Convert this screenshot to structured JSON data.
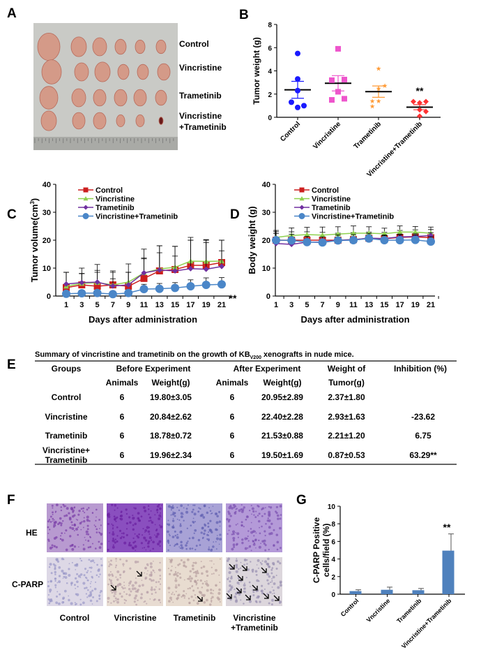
{
  "panels": {
    "a": "A",
    "b": "B",
    "c": "C",
    "d": "D",
    "e": "E",
    "f": "F",
    "g": "G"
  },
  "panel_a": {
    "row_labels": [
      "Control",
      "Vincristine",
      "Trametinib",
      "Vincristine",
      "+Trametinib"
    ]
  },
  "colors": {
    "control": "#cc1f1f",
    "vincristine": "#8fd14f",
    "trametinib": "#7030a0",
    "combo": "#4a86c8",
    "b_control": "#1a1aff",
    "b_vincristine": "#ee55cc",
    "b_trametinib": "#ff9933",
    "b_combo": "#ff3333",
    "bar": "#4f81bd"
  },
  "chart_data": [
    {
      "id": "B",
      "type": "scatter",
      "ylabel": "Tumor weight (g)",
      "ylim": [
        0,
        8
      ],
      "yticks": [
        "0",
        "2",
        "4",
        "6",
        "8"
      ],
      "categories": [
        "Control",
        "Vincristine",
        "Trametinib",
        "Vincristine+Trametinib"
      ],
      "points": [
        [
          5.5,
          3.3,
          2.3,
          1.3,
          0.85,
          1.0
        ],
        [
          5.9,
          3.2,
          3.25,
          2.2,
          1.5,
          1.6
        ],
        [
          4.2,
          2.75,
          2.5,
          1.4,
          1.4,
          0.95
        ],
        [
          1.35,
          1.25,
          1.35,
          0.65,
          0.5,
          0.1
        ]
      ],
      "mean": [
        2.37,
        2.93,
        2.21,
        0.87
      ],
      "sem": [
        0.73,
        0.66,
        0.49,
        0.22
      ],
      "annotation": "**"
    },
    {
      "id": "C",
      "type": "line",
      "ylabel": "Tumor volume(cm",
      "ylabel_sup": "3",
      "ylabel_end": ")",
      "xlabel": "Days after administration",
      "ylim": [
        0,
        40
      ],
      "yticks": [
        "0",
        "10",
        "20",
        "30",
        "40"
      ],
      "x": [
        1,
        3,
        5,
        7,
        9,
        11,
        13,
        15,
        17,
        19,
        21
      ],
      "series": [
        {
          "name": "Control",
          "values": [
            3,
            4,
            3.5,
            4,
            3.5,
            6.3,
            9,
            9.5,
            11,
            11,
            12
          ],
          "err": [
            5.5,
            4,
            5,
            5,
            5,
            7,
            9,
            8.3,
            9,
            9,
            8
          ]
        },
        {
          "name": "Vincristine",
          "values": [
            3.5,
            4.5,
            4.8,
            4,
            5,
            8.3,
            9.7,
            10.3,
            12.5,
            12.4,
            12.5
          ],
          "err": [
            5,
            5.5,
            6.5,
            4.5,
            6.5,
            8.5,
            8.3,
            7.5,
            8.5,
            7.8,
            7.5
          ]
        },
        {
          "name": "Trametinib",
          "values": [
            4.3,
            4.8,
            5,
            3.6,
            4,
            8.3,
            9.3,
            9,
            9.8,
            9.6,
            10.6
          ],
          "err": [
            4.2,
            3.3,
            4.2,
            2.6,
            4.5,
            5.3,
            6.2,
            5.3,
            10.2,
            9.5,
            5.6
          ]
        },
        {
          "name": "Vincristine+Trametinib",
          "values": [
            0.8,
            1,
            1.1,
            0.7,
            1.1,
            2.5,
            2.6,
            2.9,
            3.5,
            4,
            4.2
          ],
          "err": [
            0.5,
            0.5,
            0.5,
            0.5,
            0.6,
            1.7,
            1.9,
            1.9,
            2.3,
            2.5,
            2.4
          ]
        }
      ],
      "annotation": "**"
    },
    {
      "id": "D",
      "type": "line",
      "ylabel": "Body weight (g)",
      "xlabel": "Days after administration",
      "ylim": [
        0,
        40
      ],
      "yticks": [
        "0",
        "10",
        "20",
        "30",
        "40"
      ],
      "x": [
        1,
        3,
        5,
        7,
        9,
        11,
        13,
        15,
        17,
        19,
        21
      ],
      "series": [
        {
          "name": "Control",
          "values": [
            20,
            20,
            20,
            20,
            20,
            20.2,
            20.7,
            20.5,
            21,
            21.2,
            20.9
          ],
          "err": [
            3,
            3,
            3,
            2.8,
            2.5,
            2.5,
            2.2,
            2.3,
            2.5,
            2.5,
            2.9
          ]
        },
        {
          "name": "Vincristine",
          "values": [
            21,
            21.7,
            22,
            21.8,
            22.2,
            22.5,
            22.5,
            22.3,
            22.9,
            22.9,
            22.5
          ],
          "err": [
            2.5,
            2.7,
            2.6,
            2.9,
            2.6,
            2.6,
            2.3,
            2,
            2.2,
            2,
            2.2
          ]
        },
        {
          "name": "Trametinib",
          "values": [
            18.8,
            18.5,
            19.3,
            19.3,
            20,
            20.2,
            20.7,
            20.6,
            21.2,
            21.3,
            21.7
          ],
          "err": [
            1,
            1,
            1,
            1,
            1,
            1,
            1,
            1,
            1,
            1,
            1
          ]
        },
        {
          "name": "Vincristine+Trametinib",
          "values": [
            20,
            19.9,
            19.3,
            19.2,
            19.9,
            20,
            20.6,
            20,
            20,
            20.1,
            19.5
          ],
          "err": [
            2.4,
            2.2,
            2.1,
            2,
            2,
            2,
            1.8,
            1.9,
            1.9,
            1.7,
            1.7
          ]
        }
      ]
    },
    {
      "id": "G",
      "type": "bar",
      "ylabel_line1": "C-PARP Positive",
      "ylabel_line2": "cells/field (%)",
      "ylim": [
        0,
        10
      ],
      "yticks": [
        "0",
        "2",
        "4",
        "6",
        "8",
        "10"
      ],
      "categories": [
        "Control",
        "Vncristine",
        "Trametinib",
        "Vincristine+Trametinib"
      ],
      "values": [
        0.35,
        0.5,
        0.45,
        4.95
      ],
      "err": [
        0.15,
        0.3,
        0.2,
        1.9
      ],
      "annotation": "**"
    }
  ],
  "table": {
    "title_pre": "Summary of vincristine and trametinib on the growth of KB",
    "title_sub": "V200",
    "title_post": " xenografts in nude mice.",
    "group_headers": [
      "Groups",
      "Before Experiment",
      "After Experiment",
      "Weight of",
      "Inhibition (%)"
    ],
    "sub_headers": [
      "Animals",
      "Weight(g)",
      "Animals",
      "Weight(g)",
      "Tumor(g)"
    ],
    "rows": [
      {
        "group": "Control",
        "group2": "",
        "a1": "6",
        "w1": "19.80±3.05",
        "a2": "6",
        "w2": "20.95±2.89",
        "tumor": "2.37±1.80",
        "inhib": ""
      },
      {
        "group": "Vincristine",
        "group2": "",
        "a1": "6",
        "w1": "20.84±2.62",
        "a2": "6",
        "w2": "22.40±2.28",
        "tumor": "2.93±1.63",
        "inhib": "-23.62"
      },
      {
        "group": "Trametinib",
        "group2": "",
        "a1": "6",
        "w1": "18.78±0.72",
        "a2": "6",
        "w2": "21.53±0.88",
        "tumor": "2.21±1.20",
        "inhib": "6.75"
      },
      {
        "group": "Vincristine+",
        "group2": "Trametinib",
        "a1": "6",
        "w1": "19.96±2.34",
        "a2": "6",
        "w2": "19.50±1.69",
        "tumor": "0.87±0.53",
        "inhib": "63.29**"
      }
    ]
  },
  "panel_f": {
    "row_labels": [
      "HE",
      "C-PARP"
    ],
    "col_labels": [
      "Control",
      "Vincristine",
      "Trametinib",
      "Vincristine",
      "+Trametinib"
    ]
  }
}
